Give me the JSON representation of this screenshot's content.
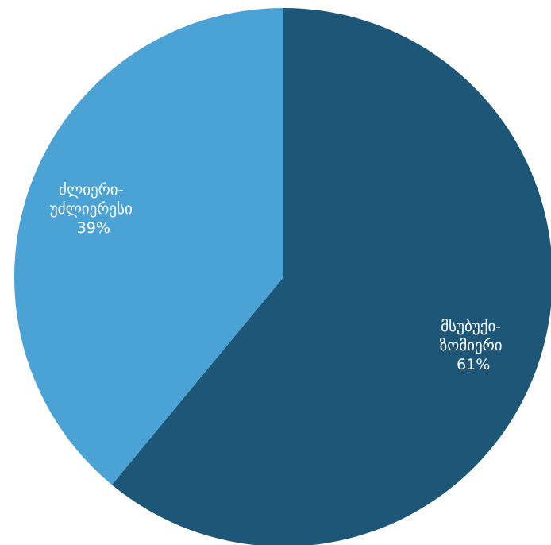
{
  "chart_data": {
    "type": "pie",
    "title": "",
    "slices": [
      {
        "name_line1": "მსუბუქი-",
        "name_line2": "ზომიერი",
        "value": 61,
        "value_label": "61%",
        "color": "#1d5677"
      },
      {
        "name_line1": "ძლიერი-",
        "name_line2": "უძლიერესი",
        "value": 39,
        "value_label": "39%",
        "color": "#4aa3d4"
      }
    ],
    "start": "top, clockwise",
    "legend": "none"
  }
}
